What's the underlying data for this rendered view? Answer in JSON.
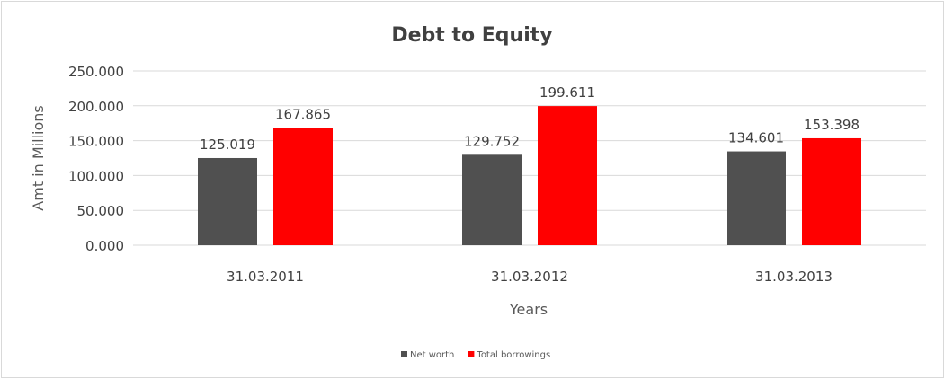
{
  "chart_data": {
    "type": "bar",
    "title": "Debt to Equity",
    "xlabel": "Years",
    "ylabel": "Amt in Millions",
    "categories": [
      "31.03.2011",
      "31.03.2012",
      "31.03.2013"
    ],
    "series": [
      {
        "name": "Net worth",
        "color": "#505050",
        "values": [
          125.019,
          129.752,
          134.601
        ],
        "labels": [
          "125.019",
          "129.752",
          "134.601"
        ]
      },
      {
        "name": "Total borrowings",
        "color": "#ff0000",
        "values": [
          167.865,
          199.611,
          153.398
        ],
        "labels": [
          "167.865",
          "199.611",
          "153.398"
        ]
      }
    ],
    "ylim": [
      0,
      250
    ],
    "yticks": [
      "0.000",
      "50.000",
      "100.000",
      "150.000",
      "200.000",
      "250.000"
    ],
    "ytick_values": [
      0,
      50,
      100,
      150,
      200,
      250
    ],
    "grid": true,
    "legend_placement": "bottom"
  }
}
